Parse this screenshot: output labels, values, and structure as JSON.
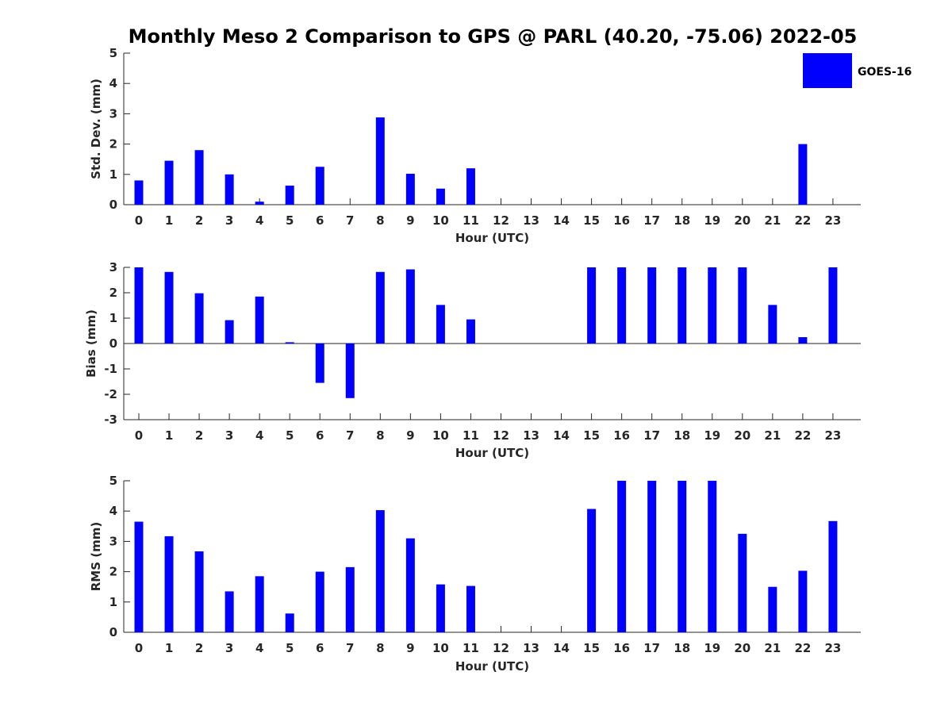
{
  "figure": {
    "title": "Monthly Meso 2 Comparison to GPS @ PARL (40.20, -75.06) 2022-05",
    "bar_color": "#0000ff"
  },
  "legend": {
    "label": "GOES-16",
    "color": "#0000ff",
    "placement": "top-right"
  },
  "chart_data": [
    {
      "type": "bar",
      "xlabel": "Hour (UTC)",
      "ylabel": "Std. Dev. (mm)",
      "categories": [
        "0",
        "1",
        "2",
        "3",
        "4",
        "5",
        "6",
        "7",
        "8",
        "9",
        "10",
        "11",
        "12",
        "13",
        "14",
        "15",
        "16",
        "17",
        "18",
        "19",
        "20",
        "21",
        "22",
        "23"
      ],
      "series": [
        {
          "name": "GOES-16",
          "values": [
            0.8,
            1.45,
            1.8,
            1.0,
            0.1,
            0.63,
            1.25,
            0,
            2.88,
            1.02,
            0.53,
            1.2,
            0,
            0,
            0,
            0,
            0,
            0,
            0,
            0,
            0,
            0,
            2.0,
            0
          ]
        }
      ],
      "ylim": [
        0,
        5
      ],
      "yticks": [
        0,
        1,
        2,
        3,
        4,
        5
      ],
      "grid": false
    },
    {
      "type": "bar",
      "xlabel": "Hour (UTC)",
      "ylabel": "Bias (mm)",
      "categories": [
        "0",
        "1",
        "2",
        "3",
        "4",
        "5",
        "6",
        "7",
        "8",
        "9",
        "10",
        "11",
        "12",
        "13",
        "14",
        "15",
        "16",
        "17",
        "18",
        "19",
        "20",
        "21",
        "22",
        "23"
      ],
      "series": [
        {
          "name": "GOES-16",
          "values": [
            3.0,
            2.82,
            1.98,
            0.92,
            1.85,
            0.05,
            -1.55,
            -2.15,
            2.82,
            2.92,
            1.52,
            0.95,
            0,
            0,
            0,
            3.0,
            3.0,
            3.0,
            3.0,
            3.0,
            3.0,
            1.52,
            0.25,
            3.0
          ]
        }
      ],
      "ylim": [
        -3,
        3
      ],
      "yticks": [
        -3,
        -2,
        -1,
        0,
        1,
        2,
        3
      ],
      "grid": false
    },
    {
      "type": "bar",
      "xlabel": "Hour (UTC)",
      "ylabel": "RMS (mm)",
      "categories": [
        "0",
        "1",
        "2",
        "3",
        "4",
        "5",
        "6",
        "7",
        "8",
        "9",
        "10",
        "11",
        "12",
        "13",
        "14",
        "15",
        "16",
        "17",
        "18",
        "19",
        "20",
        "21",
        "22",
        "23"
      ],
      "series": [
        {
          "name": "GOES-16",
          "values": [
            3.65,
            3.17,
            2.67,
            1.35,
            1.85,
            0.62,
            2.0,
            2.15,
            4.03,
            3.1,
            1.58,
            1.53,
            0,
            0,
            0,
            4.07,
            5.0,
            5.0,
            5.0,
            5.0,
            3.25,
            1.5,
            2.03,
            3.67
          ]
        }
      ],
      "ylim": [
        0,
        5
      ],
      "yticks": [
        0,
        1,
        2,
        3,
        4,
        5
      ],
      "grid": false
    }
  ]
}
